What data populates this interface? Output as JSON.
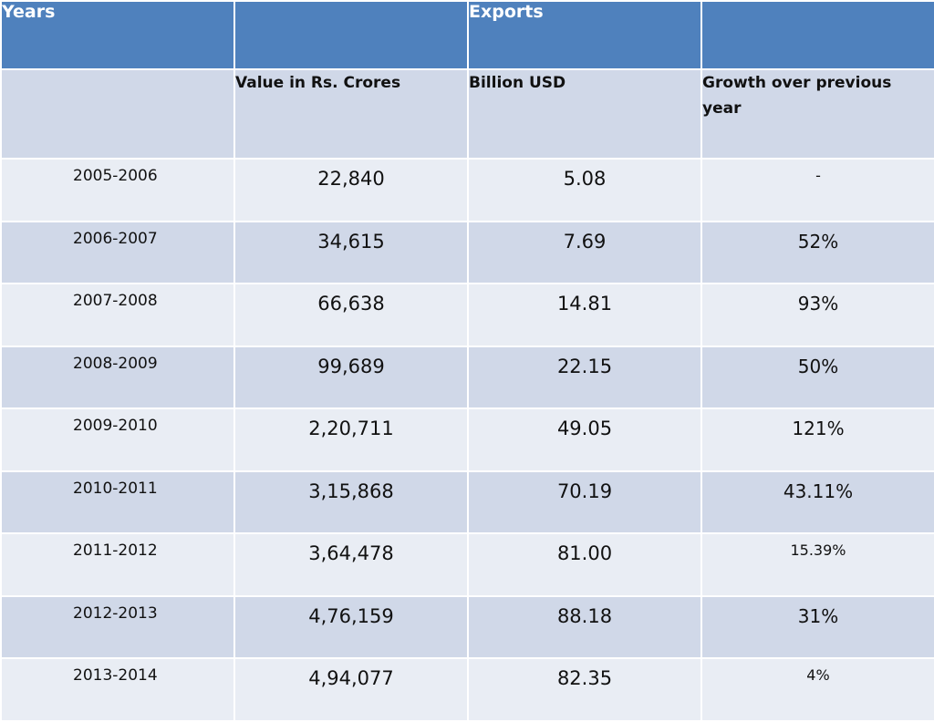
{
  "header": {
    "years_label": "Years",
    "blank1": "",
    "exports_label": "Exports",
    "blank2": ""
  },
  "subheader": {
    "blank": "",
    "value_label": "Value in Rs. Crores",
    "usd_label": "Billion USD",
    "growth_label": "Growth over previous year"
  },
  "rows": [
    {
      "year": "2005-2006",
      "value": "22,840",
      "usd": "5.08",
      "growth": "-"
    },
    {
      "year": "2006-2007",
      "value": "34,615",
      "usd": "7.69",
      "growth": "52%"
    },
    {
      "year": "2007-2008",
      "value": "66,638",
      "usd": "14.81",
      "growth": "93%"
    },
    {
      "year": "2008-2009",
      "value": "99,689",
      "usd": "22.15",
      "growth": "50%"
    },
    {
      "year": "2009-2010",
      "value": "2,20,711",
      "usd": "49.05",
      "growth": "121%"
    },
    {
      "year": "2010-2011",
      "value": "3,15,868",
      "usd": "70.19",
      "growth": "43.11%"
    },
    {
      "year": "2011-2012",
      "value": "3,64,478",
      "usd": "81.00",
      "growth": "15.39%"
    },
    {
      "year": "2012-2013",
      "value": "4,76,159",
      "usd": "88.18",
      "growth": "31%"
    },
    {
      "year": "2013-2014",
      "value": "4,94,077",
      "usd": "82.35",
      "growth": "4%"
    }
  ],
  "colors": {
    "header_bg": "#4f81bd",
    "row_dark": "#d0d8e8",
    "row_light": "#e9edf4"
  }
}
